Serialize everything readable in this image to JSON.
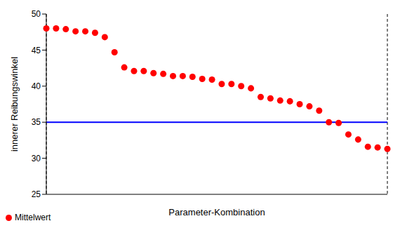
{
  "chart_data": {
    "type": "scatter",
    "x_label": "Parameter-Kombination",
    "y_label": "innerer Reibungswinkel",
    "categories": [
      null,
      null,
      null,
      null,
      null,
      null,
      null,
      null,
      null,
      null,
      null,
      null,
      null,
      null,
      null,
      null,
      null,
      null,
      null,
      null,
      null,
      null,
      null,
      null,
      null,
      null,
      null,
      null,
      null,
      null,
      null,
      null,
      null,
      null,
      null,
      null
    ],
    "series": [
      {
        "name": "Mittelwert",
        "color": "#ff0000",
        "marker": "circle",
        "values": [
          48.0,
          48.0,
          47.9,
          47.6,
          47.6,
          47.4,
          46.8,
          44.7,
          42.6,
          42.1,
          42.1,
          41.8,
          41.7,
          41.4,
          41.4,
          41.3,
          41.0,
          40.9,
          40.3,
          40.3,
          40.0,
          39.7,
          38.5,
          38.3,
          38.0,
          37.9,
          37.5,
          37.2,
          36.6,
          35.0,
          34.9,
          33.3,
          32.6,
          31.6,
          31.5,
          31.3
        ]
      }
    ],
    "reference": {
      "value": 35,
      "color": "#0000ff"
    },
    "ylim": [
      25,
      50
    ],
    "yticks": [
      25,
      30,
      35,
      40,
      45,
      50
    ],
    "grid": "x",
    "legend": "bottom-left",
    "tick_labels": "y"
  }
}
